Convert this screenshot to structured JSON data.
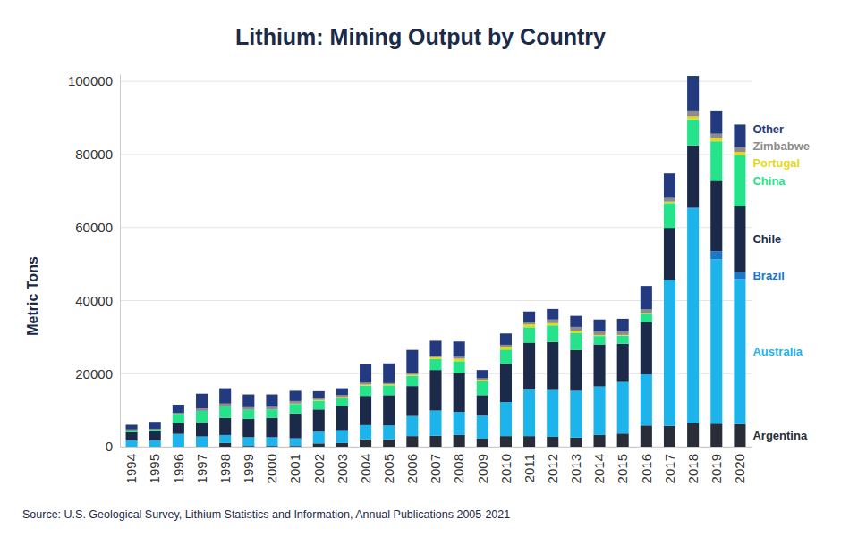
{
  "chart_data": {
    "type": "bar",
    "stacked": true,
    "title": "Lithium: Mining Output by Country",
    "y_label": "Metric Tons",
    "annotations": [
      "Source: U.S. Geological Survey, Lithium Statistics and Information, Annual Publications 2005-2021"
    ],
    "categories": [
      "1994",
      "1995",
      "1996",
      "1997",
      "1998",
      "1999",
      "2000",
      "2001",
      "2002",
      "2003",
      "2004",
      "2005",
      "2006",
      "2007",
      "2008",
      "2009",
      "2010",
      "2011",
      "2012",
      "2013",
      "2014",
      "2015",
      "2016",
      "2017",
      "2018",
      "2019",
      "2020"
    ],
    "ylim": [
      0,
      102000
    ],
    "yticks": [
      0,
      20000,
      40000,
      60000,
      80000,
      100000
    ],
    "grid": true,
    "legend": "right",
    "series": [
      {
        "name": "Argentina",
        "color": "#282d38",
        "values": [
          0,
          0,
          0,
          0,
          1000,
          200,
          200,
          200,
          900,
          1000,
          2000,
          2000,
          2900,
          3000,
          3200,
          2200,
          2900,
          2900,
          2700,
          2500,
          3200,
          3600,
          5800,
          5700,
          6400,
          6300,
          6200
        ]
      },
      {
        "name": "Australia",
        "color": "#1db4ec",
        "values": [
          1700,
          1700,
          3500,
          2800,
          2200,
          2400,
          2400,
          2100,
          3200,
          3500,
          3900,
          3800,
          5500,
          6900,
          6300,
          6300,
          9300,
          12700,
          12800,
          12800,
          13300,
          14100,
          14000,
          40000,
          58800,
          45000,
          39700
        ]
      },
      {
        "name": "Brazil",
        "color": "#1976c8",
        "values": [
          0,
          0,
          0,
          0,
          0,
          0,
          0,
          0,
          0,
          0,
          0,
          0,
          0,
          0,
          0,
          0,
          0,
          0,
          0,
          0,
          0,
          0,
          0,
          0,
          300,
          2200,
          1900
        ]
      },
      {
        "name": "Chile",
        "color": "#1b2a48",
        "values": [
          2300,
          2500,
          3000,
          3800,
          4700,
          5000,
          5300,
          6800,
          6100,
          6600,
          8000,
          8300,
          8200,
          11100,
          10600,
          5600,
          10500,
          12900,
          13200,
          11200,
          11500,
          10500,
          14300,
          14200,
          17000,
          19300,
          18000
        ]
      },
      {
        "name": "China",
        "color": "#25e38a",
        "values": [
          400,
          400,
          2500,
          3200,
          3200,
          2500,
          2300,
          2600,
          2400,
          2200,
          2800,
          2700,
          2800,
          3000,
          3300,
          3800,
          3900,
          4200,
          4500,
          4700,
          2300,
          2200,
          2300,
          6800,
          7100,
          10800,
          14000
        ]
      },
      {
        "name": "Portugal",
        "color": "#e3d91a",
        "values": [
          0,
          0,
          0,
          0,
          0,
          0,
          0,
          100,
          200,
          300,
          300,
          300,
          300,
          500,
          700,
          400,
          800,
          800,
          600,
          600,
          300,
          200,
          200,
          400,
          800,
          900,
          900
        ]
      },
      {
        "name": "Zimbabwe",
        "color": "#8c8c8c",
        "values": [
          300,
          300,
          300,
          700,
          700,
          700,
          700,
          700,
          600,
          500,
          500,
          300,
          600,
          300,
          500,
          400,
          500,
          500,
          1000,
          1000,
          900,
          900,
          1000,
          1000,
          1600,
          1200,
          1300
        ]
      },
      {
        "name": "Other",
        "color": "#233a7e",
        "values": [
          1300,
          1900,
          2200,
          4000,
          4200,
          3500,
          3400,
          2800,
          1800,
          1900,
          5000,
          5400,
          6200,
          4200,
          4200,
          2300,
          3100,
          3000,
          2900,
          3000,
          3300,
          3500,
          6400,
          6700,
          9500,
          6300,
          6200
        ]
      }
    ]
  }
}
